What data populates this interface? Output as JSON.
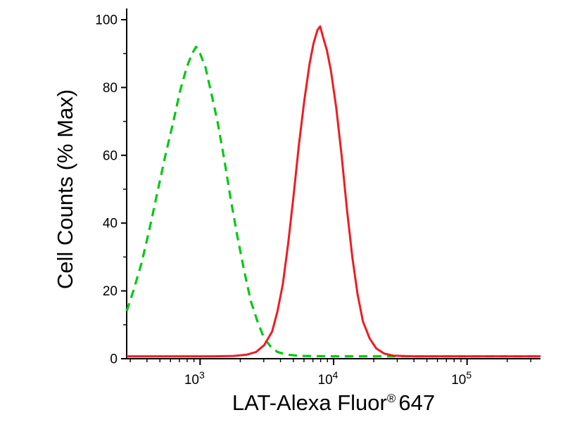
{
  "chart_data": {
    "type": "line",
    "title": "",
    "xlabel": "LAT-Alexa Fluor® 647",
    "ylabel": "Cell Counts (% Max)",
    "legend_position": "none",
    "grid": false,
    "x_axis": {
      "scale": "log10",
      "range_log10": [
        2.45,
        5.55
      ],
      "major_ticks": [
        {
          "log10": 3,
          "base": "10",
          "exp": "3"
        },
        {
          "log10": 4,
          "base": "10",
          "exp": "4"
        },
        {
          "log10": 5,
          "base": "10",
          "exp": "5"
        }
      ],
      "minor_decades": [
        2,
        3,
        4,
        5
      ],
      "minor_multiples": [
        2,
        3,
        4,
        5,
        6,
        7,
        8,
        9
      ],
      "label_parts": {
        "main": "LAT-Alexa Fluor",
        "sup": "®",
        "tail": "647"
      }
    },
    "y_axis": {
      "range": [
        0,
        100
      ],
      "major_ticks": [
        0,
        20,
        40,
        60,
        80,
        100
      ],
      "minor_ticks": [
        10,
        30,
        50,
        70,
        90
      ]
    },
    "axis_color": "#000000",
    "series": [
      {
        "name": "green-dashed-control",
        "color": "#00c814",
        "style": "dashed",
        "dash": "12 8",
        "width": 3.2,
        "points_log10x_y": [
          [
            2.45,
            14
          ],
          [
            2.5,
            20
          ],
          [
            2.56,
            28
          ],
          [
            2.62,
            38
          ],
          [
            2.68,
            49
          ],
          [
            2.74,
            60
          ],
          [
            2.8,
            70
          ],
          [
            2.85,
            79
          ],
          [
            2.9,
            86
          ],
          [
            2.94,
            90
          ],
          [
            2.97,
            92
          ],
          [
            3.0,
            90
          ],
          [
            3.04,
            86
          ],
          [
            3.08,
            79
          ],
          [
            3.13,
            70
          ],
          [
            3.18,
            59
          ],
          [
            3.23,
            47
          ],
          [
            3.28,
            36
          ],
          [
            3.33,
            26
          ],
          [
            3.38,
            17
          ],
          [
            3.43,
            11
          ],
          [
            3.48,
            6
          ],
          [
            3.53,
            3.5
          ],
          [
            3.58,
            2
          ],
          [
            3.65,
            1.2
          ],
          [
            3.75,
            0.8
          ],
          [
            4.0,
            0.7
          ],
          [
            4.8,
            0.7
          ],
          [
            5.55,
            0.7
          ]
        ]
      },
      {
        "name": "red-solid-sample",
        "color": "#ed1c24",
        "style": "solid",
        "dash": "",
        "width": 3,
        "points_log10x_y": [
          [
            2.45,
            0.7
          ],
          [
            3.1,
            0.7
          ],
          [
            3.25,
            0.8
          ],
          [
            3.35,
            1.2
          ],
          [
            3.42,
            2
          ],
          [
            3.48,
            4
          ],
          [
            3.54,
            8
          ],
          [
            3.58,
            14
          ],
          [
            3.62,
            22
          ],
          [
            3.66,
            34
          ],
          [
            3.7,
            48
          ],
          [
            3.74,
            63
          ],
          [
            3.78,
            76
          ],
          [
            3.82,
            87
          ],
          [
            3.85,
            93
          ],
          [
            3.88,
            97
          ],
          [
            3.9,
            98
          ],
          [
            3.92,
            95
          ],
          [
            3.95,
            91
          ],
          [
            3.98,
            85
          ],
          [
            4.02,
            74
          ],
          [
            4.06,
            60
          ],
          [
            4.1,
            44
          ],
          [
            4.14,
            30
          ],
          [
            4.18,
            19
          ],
          [
            4.22,
            11
          ],
          [
            4.27,
            6
          ],
          [
            4.32,
            3
          ],
          [
            4.38,
            1.5
          ],
          [
            4.45,
            0.9
          ],
          [
            4.6,
            0.7
          ],
          [
            5.55,
            0.7
          ]
        ]
      }
    ],
    "peaks": {
      "green_dashed_peak_percent_max": 92,
      "red_solid_peak_percent_max": 98
    }
  }
}
